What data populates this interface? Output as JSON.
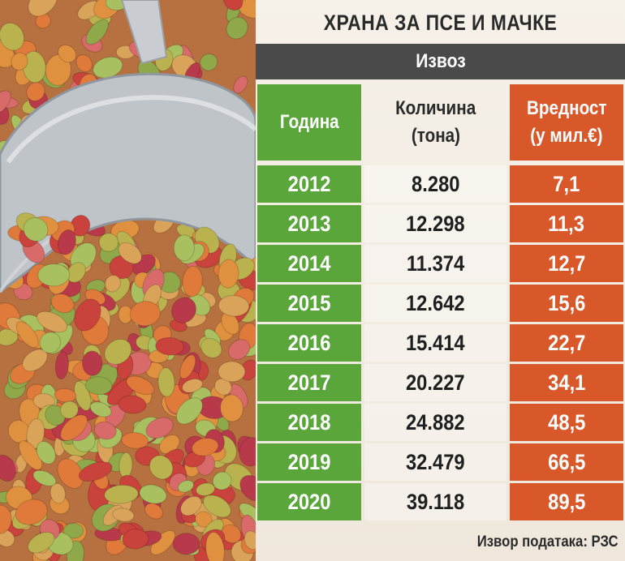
{
  "title": "ХРАНА ЗА ПСЕ И МАЧКЕ",
  "subtitle": "Извоз",
  "headers": {
    "year": "Година",
    "quantity_line1": "Количина",
    "quantity_line2": "(тона)",
    "value_line1": "Вредност",
    "value_line2": "(у мил.€)"
  },
  "rows": [
    {
      "year": "2012",
      "quantity": "8.280",
      "value": "7,1"
    },
    {
      "year": "2013",
      "quantity": "12.298",
      "value": "11,3"
    },
    {
      "year": "2014",
      "quantity": "11.374",
      "value": "12,7"
    },
    {
      "year": "2015",
      "quantity": "12.642",
      "value": "15,6"
    },
    {
      "year": "2016",
      "quantity": "15.414",
      "value": "22,7"
    },
    {
      "year": "2017",
      "quantity": "20.227",
      "value": "34,1"
    },
    {
      "year": "2018",
      "quantity": "24.882",
      "value": "48,5"
    },
    {
      "year": "2019",
      "quantity": "32.479",
      "value": "66,5"
    },
    {
      "year": "2020",
      "quantity": "39.118",
      "value": "89,5"
    }
  ],
  "source": "Извор података: РЗС",
  "colors": {
    "green": "#5aa63a",
    "orange": "#d8582a",
    "dark_bar": "#4a4a4a"
  },
  "chart_data": {
    "type": "table",
    "title": "ХРАНА ЗА ПСЕ И МАЧКЕ",
    "subtitle": "Извоз",
    "columns": [
      "Година",
      "Количина (тона)",
      "Вредност (у мил.€)"
    ],
    "x": [
      2012,
      2013,
      2014,
      2015,
      2016,
      2017,
      2018,
      2019,
      2020
    ],
    "series": [
      {
        "name": "Количина (тона)",
        "values": [
          8280,
          12298,
          11374,
          12642,
          15414,
          20227,
          24882,
          32479,
          39118
        ]
      },
      {
        "name": "Вредност (у мил.€)",
        "values": [
          7.1,
          11.3,
          12.7,
          15.6,
          22.7,
          34.1,
          48.5,
          66.5,
          89.5
        ]
      }
    ]
  }
}
